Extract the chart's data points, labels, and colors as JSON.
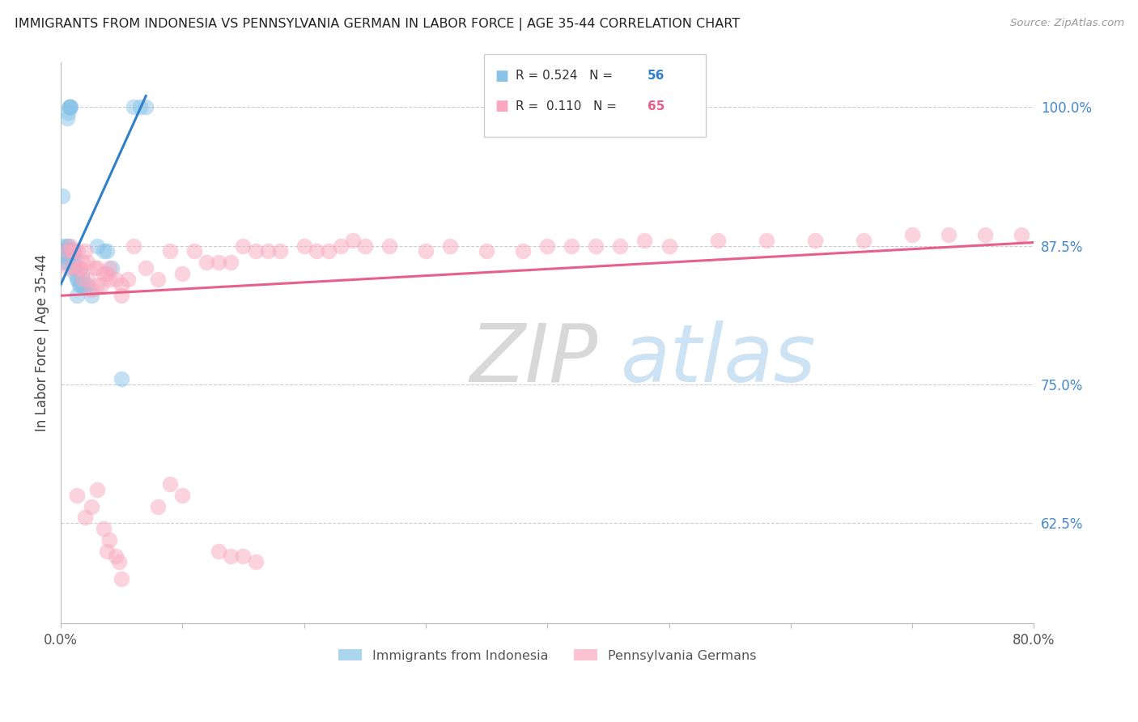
{
  "title": "IMMIGRANTS FROM INDONESIA VS PENNSYLVANIA GERMAN IN LABOR FORCE | AGE 35-44 CORRELATION CHART",
  "source": "Source: ZipAtlas.com",
  "ylabel": "In Labor Force | Age 35-44",
  "xlim": [
    0.0,
    0.8
  ],
  "ylim": [
    0.535,
    1.04
  ],
  "legend_r1": "R = 0.524",
  "legend_n1": "56",
  "legend_r2": "R =  0.110",
  "legend_n2": "65",
  "label1": "Immigrants from Indonesia",
  "label2": "Pennsylvania Germans",
  "color_blue": "#89c4e8",
  "color_pink": "#f9a8bf",
  "color_blue_line": "#3080c8",
  "color_pink_line": "#e8608a",
  "color_title": "#222222",
  "color_source": "#999999",
  "color_right_labels": "#4488cc",
  "watermark_zip": "ZIP",
  "watermark_atlas": "atlas",
  "blue_x": [
    0.001,
    0.001,
    0.002,
    0.002,
    0.003,
    0.003,
    0.003,
    0.004,
    0.004,
    0.004,
    0.004,
    0.005,
    0.005,
    0.005,
    0.005,
    0.005,
    0.005,
    0.006,
    0.006,
    0.006,
    0.006,
    0.007,
    0.007,
    0.007,
    0.007,
    0.008,
    0.008,
    0.008,
    0.009,
    0.009,
    0.009,
    0.01,
    0.01,
    0.01,
    0.011,
    0.011,
    0.012,
    0.012,
    0.013,
    0.013,
    0.014,
    0.015,
    0.016,
    0.017,
    0.018,
    0.02,
    0.022,
    0.025,
    0.03,
    0.035,
    0.038,
    0.042,
    0.05,
    0.06,
    0.065,
    0.07
  ],
  "blue_y": [
    0.87,
    0.92,
    0.86,
    0.875,
    0.87,
    0.865,
    0.87,
    0.87,
    0.87,
    0.865,
    0.87,
    0.87,
    0.87,
    0.865,
    0.86,
    0.87,
    0.875,
    0.87,
    0.865,
    0.87,
    0.875,
    0.87,
    0.87,
    0.865,
    0.87,
    0.87,
    0.87,
    0.87,
    0.87,
    0.865,
    0.87,
    0.87,
    0.865,
    0.855,
    0.86,
    0.87,
    0.85,
    0.855,
    0.845,
    0.83,
    0.845,
    0.84,
    0.84,
    0.85,
    0.84,
    0.84,
    0.84,
    0.83,
    0.875,
    0.87,
    0.87,
    0.855,
    0.755,
    1.0,
    1.0,
    1.0
  ],
  "blue_y_extra": [
    0.99,
    0.995,
    1.0,
    1.0,
    1.0,
    1.0
  ],
  "blue_x_extra": [
    0.005,
    0.006,
    0.007,
    0.007,
    0.007,
    0.008
  ],
  "pink_x": [
    0.005,
    0.006,
    0.008,
    0.01,
    0.012,
    0.014,
    0.016,
    0.018,
    0.02,
    0.022,
    0.025,
    0.028,
    0.03,
    0.033,
    0.035,
    0.038,
    0.04,
    0.045,
    0.05,
    0.055,
    0.06,
    0.07,
    0.08,
    0.09,
    0.1,
    0.11,
    0.12,
    0.13,
    0.14,
    0.15,
    0.16,
    0.17,
    0.18,
    0.2,
    0.21,
    0.22,
    0.23,
    0.24,
    0.25,
    0.27,
    0.3,
    0.32,
    0.35,
    0.38,
    0.4,
    0.42,
    0.44,
    0.46,
    0.48,
    0.5,
    0.54,
    0.58,
    0.62,
    0.66,
    0.7,
    0.73,
    0.76,
    0.79,
    0.01,
    0.015,
    0.018,
    0.022,
    0.03,
    0.04,
    0.05
  ],
  "pink_y": [
    0.87,
    0.855,
    0.875,
    0.87,
    0.855,
    0.87,
    0.855,
    0.86,
    0.87,
    0.86,
    0.835,
    0.855,
    0.855,
    0.84,
    0.85,
    0.85,
    0.855,
    0.845,
    0.84,
    0.845,
    0.875,
    0.855,
    0.845,
    0.87,
    0.85,
    0.87,
    0.86,
    0.86,
    0.86,
    0.875,
    0.87,
    0.87,
    0.87,
    0.875,
    0.87,
    0.87,
    0.875,
    0.88,
    0.875,
    0.875,
    0.87,
    0.875,
    0.87,
    0.87,
    0.875,
    0.875,
    0.875,
    0.875,
    0.88,
    0.875,
    0.88,
    0.88,
    0.88,
    0.88,
    0.885,
    0.885,
    0.885,
    0.885,
    0.87,
    0.855,
    0.845,
    0.845,
    0.84,
    0.845,
    0.83
  ],
  "pink_y_low": [
    0.65,
    0.63,
    0.64,
    0.655,
    0.62,
    0.6,
    0.61,
    0.595,
    0.59,
    0.575,
    0.64,
    0.66,
    0.65,
    0.6,
    0.595,
    0.595,
    0.59
  ],
  "pink_x_low": [
    0.013,
    0.02,
    0.025,
    0.03,
    0.035,
    0.038,
    0.04,
    0.045,
    0.048,
    0.05,
    0.08,
    0.09,
    0.1,
    0.13,
    0.14,
    0.15,
    0.16
  ],
  "blue_line_x": [
    0.0,
    0.07
  ],
  "blue_line_y": [
    0.84,
    1.01
  ],
  "pink_line_x": [
    0.0,
    0.8
  ],
  "pink_line_y": [
    0.83,
    0.878
  ]
}
